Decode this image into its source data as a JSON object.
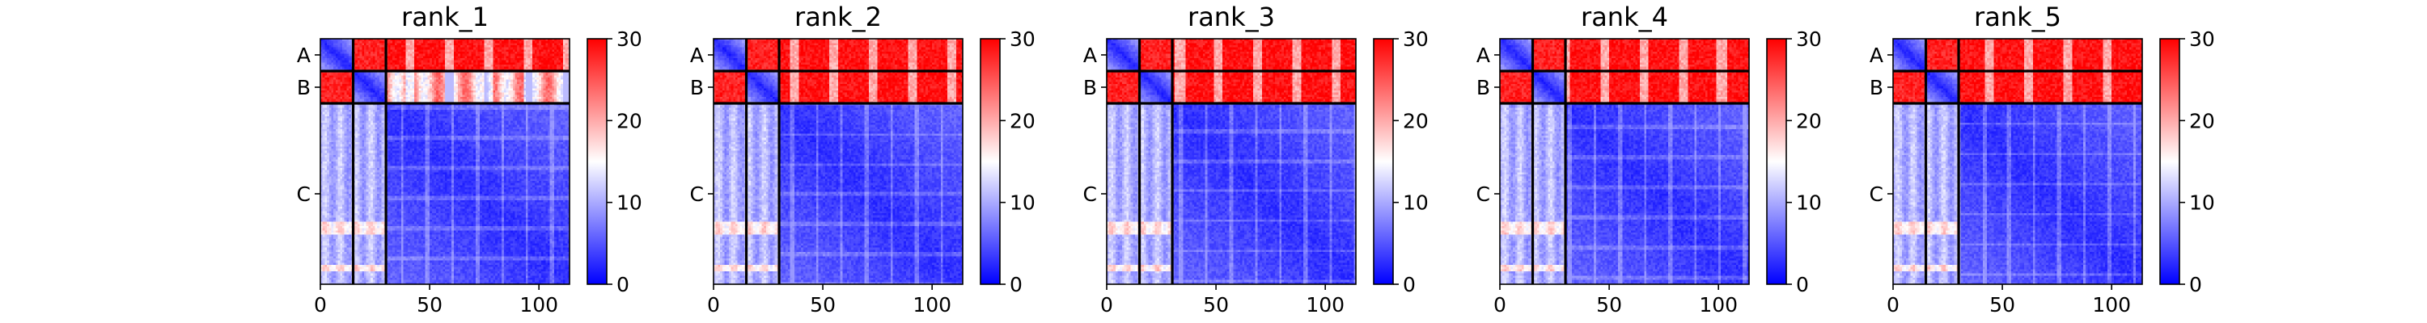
{
  "chart_data": {
    "type": "heatmap",
    "colormap": {
      "low": "#0000ff",
      "mid": "#ffffff",
      "high": "#ff0000"
    },
    "value_range": [
      0,
      30
    ],
    "colorbar_ticks": [
      "0",
      "10",
      "20",
      "30"
    ],
    "x_ticks": [
      "0",
      "50",
      "100"
    ],
    "x_tick_values": [
      0,
      50,
      100
    ],
    "n_residues": 114,
    "chains": [
      {
        "label": "A",
        "start": 0,
        "end": 15
      },
      {
        "label": "B",
        "start": 15,
        "end": 30
      },
      {
        "label": "C",
        "start": 30,
        "end": 114
      }
    ],
    "panels": [
      {
        "title": "rank_1"
      },
      {
        "title": "rank_2"
      },
      {
        "title": "rank_3"
      },
      {
        "title": "rank_4"
      },
      {
        "title": "rank_5"
      }
    ]
  }
}
